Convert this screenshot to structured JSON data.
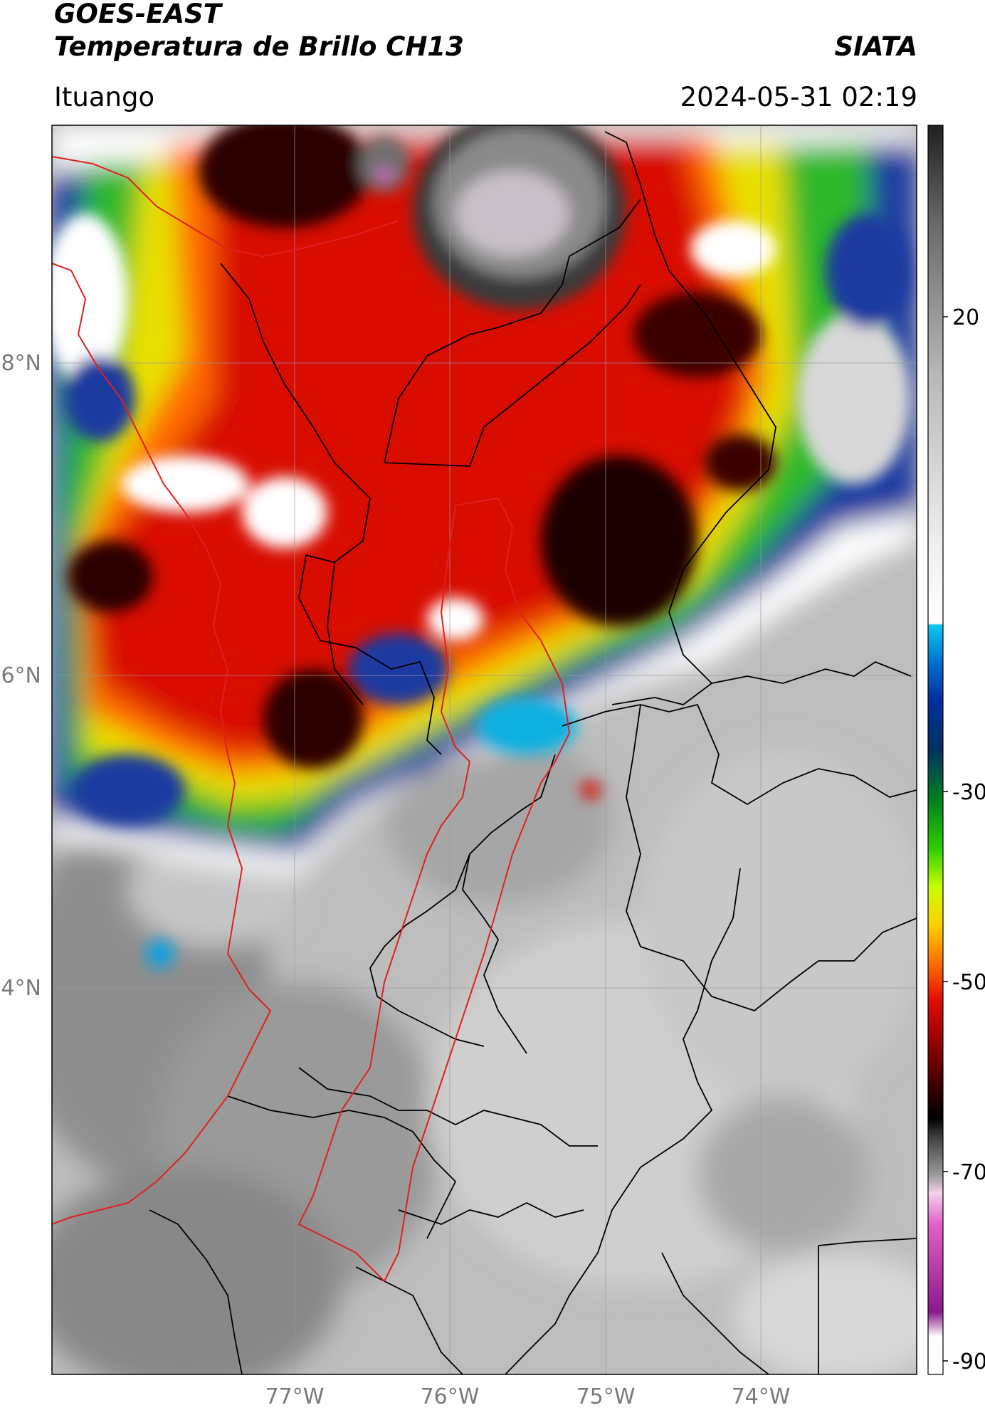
{
  "header": {
    "title_line1": "GOES-EAST",
    "title_line2": "Temperatura de Brillo CH13",
    "source": "SIATA",
    "region": "Ituango",
    "timestamp": "2024-05-31 02:19"
  },
  "map": {
    "lat_ticks": [
      {
        "label": "8°N",
        "value": 8
      },
      {
        "label": "6°N",
        "value": 6
      },
      {
        "label": "4°N",
        "value": 4
      }
    ],
    "lon_ticks": [
      {
        "label": "77°W",
        "value": -77
      },
      {
        "label": "76°W",
        "value": -76
      },
      {
        "label": "75°W",
        "value": -75
      },
      {
        "label": "74°W",
        "value": -74
      }
    ],
    "extent": {
      "lon_min": -78.55,
      "lon_max": -72.98,
      "lat_min": 2.45,
      "lat_max": 9.55
    },
    "gridlines": true,
    "colors": {
      "country_border": "#e02020",
      "admin_border": "#000000"
    }
  },
  "colorbar": {
    "tick_labels": [
      {
        "label": "20",
        "value": 20
      },
      {
        "label": "-30",
        "value": -30
      },
      {
        "label": "-50",
        "value": -50
      },
      {
        "label": "-70",
        "value": -70
      },
      {
        "label": "-90",
        "value": -90
      }
    ],
    "range": [
      -90,
      45
    ]
  }
}
